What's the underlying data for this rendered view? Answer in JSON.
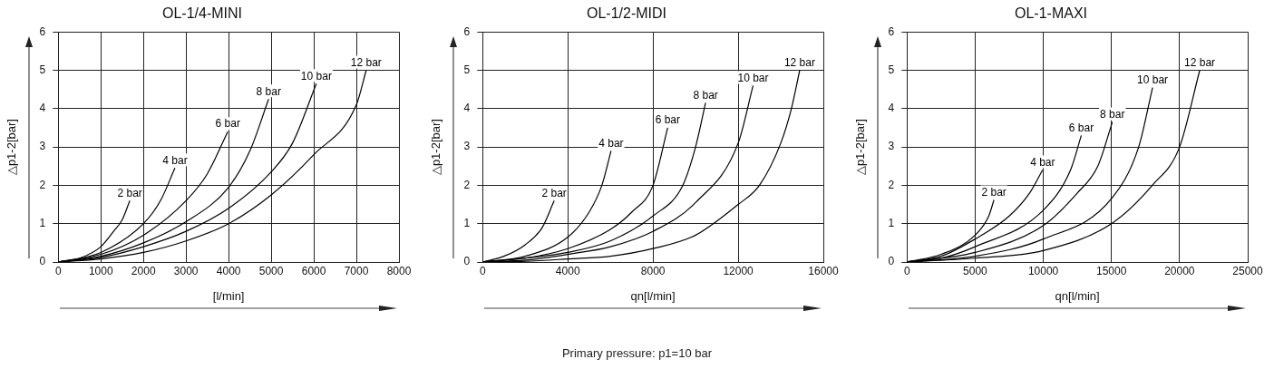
{
  "chart_data": [
    {
      "type": "line",
      "title": "OL-1/4-MINI",
      "xlabel": "[l/min]",
      "ylabel": "△p1-2[bar]",
      "xlim": [
        0,
        8000
      ],
      "xticks": [
        0,
        1000,
        2000,
        3000,
        4000,
        5000,
        6000,
        7000,
        8000
      ],
      "ylim": [
        0,
        6
      ],
      "yticks": [
        0,
        1,
        2,
        3,
        4,
        5,
        6
      ],
      "grid": true,
      "series": [
        {
          "name": "2 bar",
          "color": "#000000",
          "x": [
            0,
            500,
            1000,
            1300,
            1500,
            1680
          ],
          "values": [
            0,
            0.1,
            0.4,
            0.8,
            1.1,
            1.6
          ]
        },
        {
          "name": "4 bar",
          "color": "#000000",
          "x": [
            0,
            1000,
            2000,
            2400,
            2740
          ],
          "values": [
            0,
            0.25,
            1.0,
            1.6,
            2.45
          ]
        },
        {
          "name": "6 bar",
          "color": "#000000",
          "x": [
            0,
            1000,
            2000,
            3000,
            3500,
            3980
          ],
          "values": [
            0,
            0.2,
            0.7,
            1.6,
            2.3,
            3.4
          ]
        },
        {
          "name": "8 bar",
          "color": "#000000",
          "x": [
            0,
            1000,
            2000,
            3000,
            4000,
            4500,
            4940
          ],
          "values": [
            0,
            0.15,
            0.5,
            1.05,
            1.95,
            2.9,
            4.25
          ]
        },
        {
          "name": "10 bar",
          "color": "#000000",
          "x": [
            0,
            1000,
            2000,
            3000,
            4000,
            5000,
            5500,
            6060
          ],
          "values": [
            0,
            0.12,
            0.4,
            0.8,
            1.4,
            2.35,
            3.1,
            4.65
          ]
        },
        {
          "name": "12 bar",
          "color": "#000000",
          "x": [
            0,
            1000,
            2000,
            3000,
            4000,
            5000,
            6000,
            7000,
            7230
          ],
          "values": [
            0,
            0.08,
            0.25,
            0.55,
            1.0,
            1.75,
            2.8,
            4.1,
            5.0
          ]
        }
      ]
    },
    {
      "type": "line",
      "title": "OL-1/2-MIDI",
      "xlabel": "qn[l/min]",
      "ylabel": "△p1-2[bar]",
      "xlim": [
        0,
        16000
      ],
      "xticks": [
        0,
        4000,
        8000,
        12000,
        16000
      ],
      "ylim": [
        0,
        6
      ],
      "yticks": [
        0,
        1,
        2,
        3,
        4,
        5,
        6
      ],
      "grid": true,
      "annotations": [
        "Primary pressure: p1=10 bar"
      ],
      "series": [
        {
          "name": "2 bar",
          "color": "#000000",
          "x": [
            0,
            1000,
            2000,
            2800,
            3360
          ],
          "values": [
            0,
            0.15,
            0.45,
            0.9,
            1.6
          ]
        },
        {
          "name": "4 bar",
          "color": "#000000",
          "x": [
            0,
            2000,
            4000,
            5000,
            5600,
            6030
          ],
          "values": [
            0,
            0.15,
            0.65,
            1.3,
            2.0,
            2.9
          ]
        },
        {
          "name": "6 bar",
          "color": "#000000",
          "x": [
            0,
            2000,
            4000,
            6000,
            7000,
            8000,
            8690
          ],
          "values": [
            0,
            0.1,
            0.35,
            0.85,
            1.3,
            2.0,
            3.5
          ]
        },
        {
          "name": "8 bar",
          "color": "#000000",
          "x": [
            0,
            2000,
            4000,
            6000,
            8000,
            9400,
            10000,
            10470
          ],
          "values": [
            0,
            0.1,
            0.25,
            0.55,
            1.2,
            2.0,
            3.0,
            4.15
          ]
        },
        {
          "name": "10 bar",
          "color": "#000000",
          "x": [
            0,
            2000,
            4000,
            6000,
            8000,
            10000,
            12000,
            12700
          ],
          "values": [
            0,
            0.05,
            0.2,
            0.4,
            0.8,
            1.55,
            3.1,
            4.6
          ]
        },
        {
          "name": "12 bar",
          "color": "#000000",
          "x": [
            0,
            2000,
            4000,
            6000,
            8000,
            10000,
            12000,
            13000,
            14000,
            14500,
            14890
          ],
          "values": [
            0,
            0.02,
            0.08,
            0.15,
            0.35,
            0.7,
            1.5,
            2.0,
            3.1,
            4.0,
            5.0
          ]
        }
      ]
    },
    {
      "type": "line",
      "title": "OL-1-MAXI",
      "xlabel": "qn[l/min]",
      "ylabel": "△p1-2[bar]",
      "xlim": [
        0,
        25000
      ],
      "xticks": [
        0,
        5000,
        10000,
        15000,
        20000,
        25000
      ],
      "ylim": [
        0,
        6
      ],
      "yticks": [
        0,
        1,
        2,
        3,
        4,
        5,
        6
      ],
      "grid": true,
      "series": [
        {
          "name": "2 bar",
          "color": "#000000",
          "x": [
            0,
            2500,
            5000,
            6000,
            6380
          ],
          "values": [
            0,
            0.2,
            0.7,
            1.2,
            1.62
          ]
        },
        {
          "name": "4 bar",
          "color": "#000000",
          "x": [
            0,
            2500,
            5000,
            7500,
            9000,
            9950
          ],
          "values": [
            0,
            0.15,
            0.6,
            1.2,
            1.8,
            2.4
          ]
        },
        {
          "name": "6 bar",
          "color": "#000000",
          "x": [
            0,
            2500,
            5000,
            10000,
            12000,
            12790
          ],
          "values": [
            0,
            0.1,
            0.4,
            1.35,
            2.4,
            3.3
          ]
        },
        {
          "name": "8 bar",
          "color": "#000000",
          "x": [
            0,
            5000,
            10000,
            12500,
            14000,
            15070
          ],
          "values": [
            0,
            0.25,
            0.95,
            1.8,
            2.5,
            3.65
          ]
        },
        {
          "name": "10 bar",
          "color": "#000000",
          "x": [
            0,
            5000,
            10000,
            15000,
            17000,
            18020
          ],
          "values": [
            0,
            0.15,
            0.6,
            1.65,
            3.0,
            4.55
          ]
        },
        {
          "name": "12 bar",
          "color": "#000000",
          "x": [
            0,
            5000,
            10000,
            15000,
            18000,
            20000,
            21480
          ],
          "values": [
            0,
            0.1,
            0.3,
            1.0,
            2.0,
            3.0,
            5.0
          ]
        }
      ]
    }
  ]
}
